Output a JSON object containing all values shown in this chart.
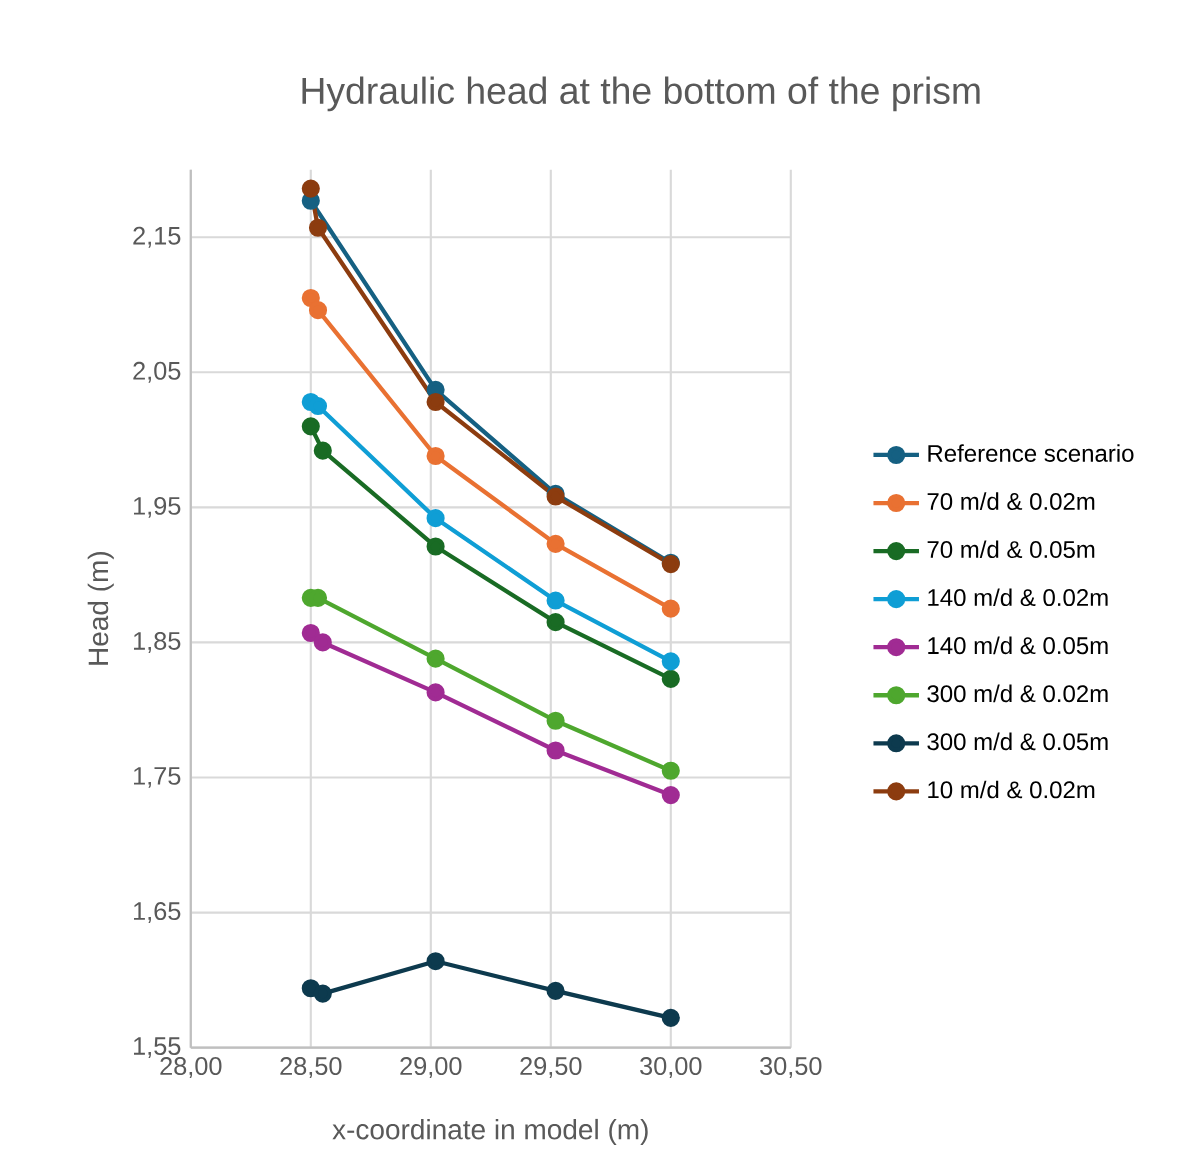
{
  "chart_data": {
    "type": "line",
    "title": "Hydraulic head at the bottom of the prism",
    "xlabel": "x-coordinate in model (m)",
    "ylabel": "Head (m)",
    "xlim": [
      28.0,
      30.5
    ],
    "ylim": [
      1.55,
      2.2
    ],
    "xticks": [
      {
        "value": 28.0,
        "label": "28,00"
      },
      {
        "value": 28.5,
        "label": "28,50"
      },
      {
        "value": 29.0,
        "label": "29,00"
      },
      {
        "value": 29.5,
        "label": "29,50"
      },
      {
        "value": 30.0,
        "label": "30,00"
      },
      {
        "value": 30.5,
        "label": "30,50"
      }
    ],
    "yticks": [
      {
        "value": 1.55,
        "label": "1,55"
      },
      {
        "value": 1.65,
        "label": "1,65"
      },
      {
        "value": 1.75,
        "label": "1,75"
      },
      {
        "value": 1.85,
        "label": "1,85"
      },
      {
        "value": 1.95,
        "label": "1,95"
      },
      {
        "value": 2.05,
        "label": "2,05"
      },
      {
        "value": 2.15,
        "label": "2,15"
      }
    ],
    "grid": true,
    "legend": "right",
    "marker": "circle",
    "line_style": "solid",
    "series": [
      {
        "name": "Reference scenario",
        "color": "#156082",
        "x": [
          28.5,
          29.02,
          29.52,
          30.0
        ],
        "values": [
          2.177,
          2.037,
          1.96,
          1.909
        ]
      },
      {
        "name": "70 m/d & 0.02m",
        "color": "#e97132",
        "x": [
          28.5,
          28.53,
          29.02,
          29.52,
          30.0
        ],
        "values": [
          2.105,
          2.096,
          1.988,
          1.923,
          1.875
        ]
      },
      {
        "name": "70 m/d & 0.05m",
        "color": "#196b24",
        "x": [
          28.5,
          28.55,
          29.02,
          29.52,
          30.0
        ],
        "values": [
          2.01,
          1.992,
          1.921,
          1.865,
          1.823
        ]
      },
      {
        "name": "140 m/d & 0.02m",
        "color": "#0f9ed5",
        "x": [
          28.5,
          28.53,
          29.02,
          29.52,
          30.0
        ],
        "values": [
          2.028,
          2.025,
          1.942,
          1.881,
          1.836
        ]
      },
      {
        "name": "140 m/d & 0.05m",
        "color": "#a02b93",
        "x": [
          28.5,
          28.55,
          29.02,
          29.52,
          30.0
        ],
        "values": [
          1.857,
          1.85,
          1.813,
          1.77,
          1.737
        ]
      },
      {
        "name": "300 m/d & 0.02m",
        "color": "#4ea72e",
        "x": [
          28.5,
          28.53,
          29.02,
          29.52,
          30.0
        ],
        "values": [
          1.883,
          1.883,
          1.838,
          1.792,
          1.755
        ]
      },
      {
        "name": "300 m/d & 0.05m",
        "color": "#0d3a4e",
        "x": [
          28.5,
          28.55,
          29.02,
          29.52,
          30.0
        ],
        "values": [
          1.594,
          1.59,
          1.614,
          1.592,
          1.572
        ]
      },
      {
        "name": "10 m/d & 0.02m",
        "color": "#8c3c0f",
        "x": [
          28.5,
          28.53,
          29.02,
          29.52,
          30.0
        ],
        "values": [
          2.186,
          2.157,
          2.028,
          1.958,
          1.908
        ]
      }
    ]
  }
}
